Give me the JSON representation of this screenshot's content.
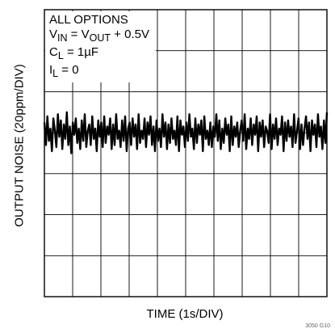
{
  "chart_data": {
    "type": "line",
    "title": "",
    "xlabel": "TIME (1s/DIV)",
    "ylabel": "OUTPUT NOISE (20ppm/DIV)",
    "x_divisions": 10,
    "y_divisions": 7,
    "grid": true,
    "legend": "none",
    "annotation": {
      "line1": "ALL OPTIONS",
      "line2_a": "V",
      "line2_a_sub": "IN",
      "line2_b": " = V",
      "line2_b_sub": "OUT",
      "line2_c": " + 0.5V",
      "line3_a": "C",
      "line3_a_sub": "L",
      "line3_b": " = 1µF",
      "line4_a": "I",
      "line4_a_sub": "L",
      "line4_b": " = 0"
    },
    "series": [
      {
        "values": [
          0.25,
          -0.3,
          0.4,
          -0.2,
          0.1,
          -0.45,
          0.35,
          0.05,
          -0.35,
          0.45,
          -0.1,
          0.3,
          -0.4,
          0.2,
          -0.15,
          0.5,
          -0.3,
          0.15,
          -0.5,
          0.25,
          -0.05,
          0.35,
          -0.25,
          0.1,
          -0.4,
          0.3,
          -0.2,
          0.45,
          -0.35,
          0.05,
          0.2,
          -0.3,
          0.4,
          -0.15,
          0.1,
          -0.45,
          0.3,
          -0.1,
          0.25,
          -0.35,
          0.4,
          -0.25,
          0.15,
          -0.05,
          0.35,
          -0.4,
          0.2,
          -0.3,
          0.45,
          -0.15,
          0.05,
          -0.35,
          0.3,
          -0.2,
          0.4,
          -0.45,
          0.1,
          0.25,
          -0.3,
          0.35,
          -0.1,
          0.2,
          -0.4,
          0.45,
          -0.25,
          0.05,
          -0.15,
          0.35,
          -0.35,
          0.25,
          -0.05,
          0.4,
          -0.3,
          0.15,
          -0.45,
          0.3,
          -0.2,
          0.1,
          -0.35,
          0.45,
          -0.1,
          0.25,
          -0.4,
          0.2,
          -0.25,
          0.35,
          -0.15,
          0.05,
          -0.3,
          0.4,
          -0.45,
          0.3,
          -0.05,
          0.15,
          -0.35,
          0.25,
          -0.2,
          0.45,
          -0.1,
          0.1,
          -0.4,
          0.35,
          -0.25,
          0.2,
          -0.05,
          0.3,
          -0.45,
          0.4,
          -0.15,
          0.05,
          -0.3,
          0.25,
          -0.35,
          0.15,
          -0.1,
          0.45,
          -0.2,
          0.3,
          -0.4,
          0.1,
          -0.25,
          0.35,
          -0.05,
          0.2,
          -0.45,
          0.4,
          -0.3,
          0.15,
          -0.1,
          0.25,
          -0.35,
          0.05,
          0.3,
          -0.2,
          0.45,
          -0.4,
          0.1,
          -0.15,
          0.35,
          -0.3,
          0.2,
          -0.05,
          0.4,
          -0.45,
          0.25,
          -0.1,
          0.3,
          -0.35,
          0.15,
          0.05,
          -0.25,
          0.45,
          -0.4,
          0.2,
          -0.15,
          0.35,
          -0.3,
          0.1,
          -0.05,
          0.4,
          -0.45,
          0.25,
          -0.2,
          0.3,
          -0.1,
          0.15,
          -0.35,
          0.45,
          -0.25,
          0.05,
          0.35,
          -0.4,
          0.2,
          -0.3,
          0.1,
          0.4,
          -0.15,
          0.25,
          -0.45,
          0.3,
          -0.05,
          0.2,
          -0.35,
          0.45,
          -0.1,
          0.15,
          -0.4,
          0.3,
          -0.25,
          0.5
        ]
      }
    ]
  },
  "figure_code": "3050 G10"
}
